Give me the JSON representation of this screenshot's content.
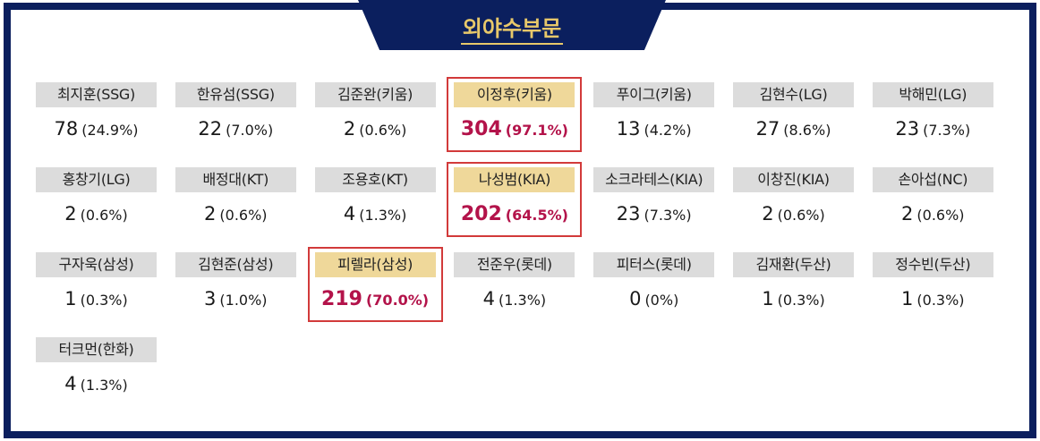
{
  "title": "외야수부문",
  "colors": {
    "frame": "#0b1f5e",
    "title_text": "#e8c86a",
    "name_bg": "#dcdcdc",
    "highlight_name_bg": "#efd89a",
    "highlight_border": "#d23a3a",
    "highlight_value": "#b3134a"
  },
  "players": [
    {
      "name": "최지훈(SSG)",
      "votes": "78",
      "pct": "(24.9%)",
      "highlight": false
    },
    {
      "name": "한유섬(SSG)",
      "votes": "22",
      "pct": "(7.0%)",
      "highlight": false
    },
    {
      "name": "김준완(키움)",
      "votes": "2",
      "pct": "(0.6%)",
      "highlight": false
    },
    {
      "name": "이정후(키움)",
      "votes": "304",
      "pct": "(97.1%)",
      "highlight": true
    },
    {
      "name": "푸이그(키움)",
      "votes": "13",
      "pct": "(4.2%)",
      "highlight": false
    },
    {
      "name": "김현수(LG)",
      "votes": "27",
      "pct": "(8.6%)",
      "highlight": false
    },
    {
      "name": "박해민(LG)",
      "votes": "23",
      "pct": "(7.3%)",
      "highlight": false
    },
    {
      "name": "홍창기(LG)",
      "votes": "2",
      "pct": "(0.6%)",
      "highlight": false
    },
    {
      "name": "배정대(KT)",
      "votes": "2",
      "pct": "(0.6%)",
      "highlight": false
    },
    {
      "name": "조용호(KT)",
      "votes": "4",
      "pct": "(1.3%)",
      "highlight": false
    },
    {
      "name": "나성범(KIA)",
      "votes": "202",
      "pct": "(64.5%)",
      "highlight": true
    },
    {
      "name": "소크라테스(KIA)",
      "votes": "23",
      "pct": "(7.3%)",
      "highlight": false
    },
    {
      "name": "이창진(KIA)",
      "votes": "2",
      "pct": "(0.6%)",
      "highlight": false
    },
    {
      "name": "손아섭(NC)",
      "votes": "2",
      "pct": "(0.6%)",
      "highlight": false
    },
    {
      "name": "구자욱(삼성)",
      "votes": "1",
      "pct": "(0.3%)",
      "highlight": false
    },
    {
      "name": "김현준(삼성)",
      "votes": "3",
      "pct": "(1.0%)",
      "highlight": false
    },
    {
      "name": "피렐라(삼성)",
      "votes": "219",
      "pct": "(70.0%)",
      "highlight": true
    },
    {
      "name": "전준우(롯데)",
      "votes": "4",
      "pct": "(1.3%)",
      "highlight": false
    },
    {
      "name": "피터스(롯데)",
      "votes": "0",
      "pct": "(0%)",
      "highlight": false
    },
    {
      "name": "김재환(두산)",
      "votes": "1",
      "pct": "(0.3%)",
      "highlight": false
    },
    {
      "name": "정수빈(두산)",
      "votes": "1",
      "pct": "(0.3%)",
      "highlight": false
    },
    {
      "name": "터크먼(한화)",
      "votes": "4",
      "pct": "(1.3%)",
      "highlight": false
    }
  ]
}
